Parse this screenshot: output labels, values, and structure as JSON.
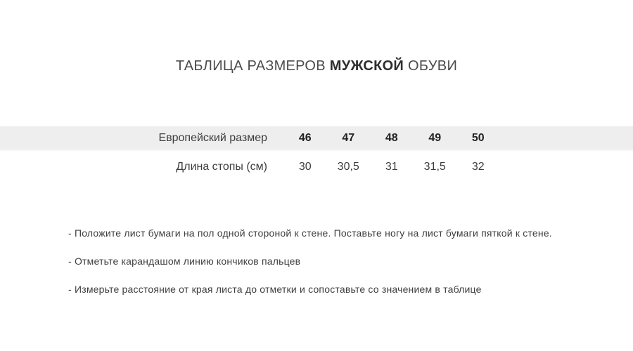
{
  "title": {
    "prefix": "ТАБЛИЦА РАЗМЕРОВ ",
    "emphasis": "МУЖСКОЙ",
    "suffix": " ОБУВИ"
  },
  "size_table": {
    "rows": [
      {
        "label": "Европейский размер",
        "values": [
          "46",
          "47",
          "48",
          "49",
          "50"
        ]
      },
      {
        "label": "Длина стопы (см)",
        "values": [
          "30",
          "30,5",
          "31",
          "31,5",
          "32"
        ]
      }
    ]
  },
  "instructions": {
    "items": [
      "- Положите лист бумаги на пол одной стороной к стене. Поставьте ногу на лист бумаги пяткой к стене.",
      "- Отметьте карандашом линию кончиков пальцев",
      "- Измерьте расстояние от края листа до отметки и сопоставьте со значением в таблице"
    ]
  },
  "colors": {
    "page_background": "#ffffff",
    "highlight_row_background": "#eeeeee",
    "title_text": "#4b4b4b",
    "title_emphasis_text": "#2e2e2e",
    "table_text": "#3c3c3c",
    "bold_size_text": "#222222",
    "instruction_text": "#3e3e3e"
  }
}
